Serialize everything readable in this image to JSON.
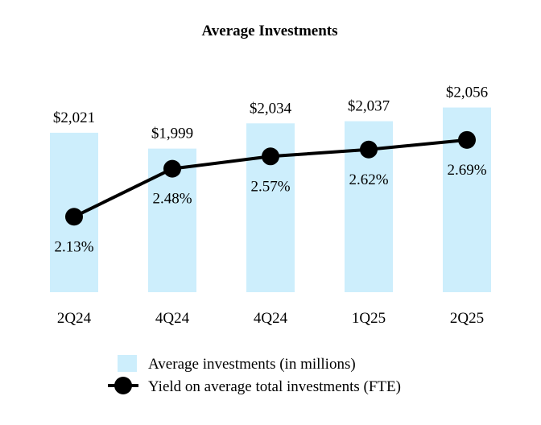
{
  "chart_data": {
    "type": "bar",
    "title": "Average Investments",
    "categories": [
      "2Q24",
      "4Q24",
      "4Q24",
      "1Q25",
      "2Q25"
    ],
    "series": [
      {
        "name": "Average investments (in millions)",
        "type": "bar",
        "values": [
          2021,
          1999,
          2034,
          2037,
          2056
        ],
        "labels": [
          "$2,021",
          "$1,999",
          "$2,034",
          "$2,037",
          "$2,056"
        ],
        "color": "#cdeefc"
      },
      {
        "name": "Yield on average total investments (FTE)",
        "type": "line",
        "values": [
          2.13,
          2.48,
          2.57,
          2.62,
          2.69
        ],
        "labels": [
          "2.13%",
          "2.48%",
          "2.57%",
          "2.62%",
          "2.69%"
        ],
        "color": "#000000"
      }
    ],
    "bar_ylim": [
      1800,
      2070
    ],
    "line_ylim": [
      1.58,
      3.0
    ],
    "legend_position": "bottom",
    "grid": false
  }
}
